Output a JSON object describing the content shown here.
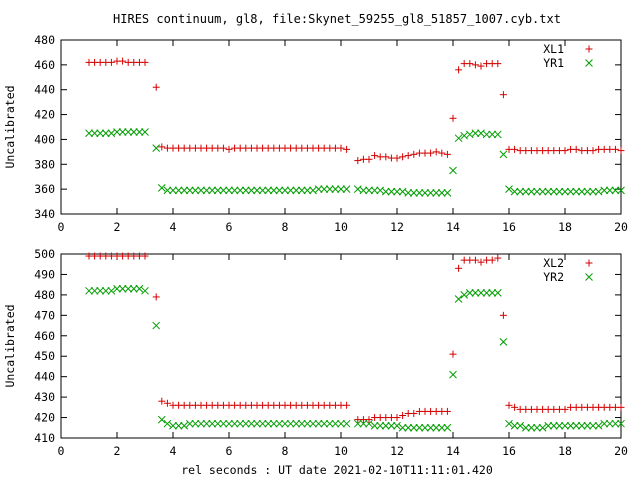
{
  "chart_data": [
    {
      "type": "scatter",
      "title": "HIRES continuum, gl8, file:Skynet_59255_gl8_51857_1007.cyb.txt",
      "ylabel": "Uncalibrated",
      "xlabel": "",
      "xlim": [
        0,
        20
      ],
      "ylim": [
        340,
        480
      ],
      "xticks": [
        "0",
        "2",
        "4",
        "6",
        "8",
        "10",
        "12",
        "14",
        "16",
        "18",
        "20"
      ],
      "yticks": [
        "340",
        "360",
        "380",
        "400",
        "420",
        "440",
        "460",
        "480"
      ],
      "grid": false,
      "legend_position": "top-right",
      "x": [
        1.0,
        1.2,
        1.4,
        1.6,
        1.8,
        2.0,
        2.2,
        2.4,
        2.6,
        2.8,
        3.0,
        3.4,
        3.6,
        3.8,
        4.0,
        4.2,
        4.4,
        4.6,
        4.8,
        5.0,
        5.2,
        5.4,
        5.6,
        5.8,
        6.0,
        6.2,
        6.4,
        6.6,
        6.8,
        7.0,
        7.2,
        7.4,
        7.6,
        7.8,
        8.0,
        8.2,
        8.4,
        8.6,
        8.8,
        9.0,
        9.2,
        9.4,
        9.6,
        9.8,
        10.0,
        10.2,
        10.6,
        10.8,
        11.0,
        11.2,
        11.4,
        11.6,
        11.8,
        12.0,
        12.2,
        12.4,
        12.6,
        12.8,
        13.0,
        13.2,
        13.4,
        13.6,
        13.8,
        14.0,
        14.2,
        14.4,
        14.6,
        14.8,
        15.0,
        15.2,
        15.4,
        15.6,
        15.8,
        16.0,
        16.2,
        16.4,
        16.6,
        16.8,
        17.0,
        17.2,
        17.4,
        17.6,
        17.8,
        18.0,
        18.2,
        18.4,
        18.6,
        18.8,
        19.0,
        19.2,
        19.4,
        19.6,
        19.8,
        20.0
      ],
      "series": [
        {
          "name": "XL1",
          "marker": "+",
          "color": "#d40000",
          "values": [
            462,
            462,
            462,
            462,
            462,
            463,
            463,
            462,
            462,
            462,
            462,
            442,
            394,
            393,
            393,
            393,
            393,
            393,
            393,
            393,
            393,
            393,
            393,
            393,
            392,
            393,
            393,
            393,
            393,
            393,
            393,
            393,
            393,
            393,
            393,
            393,
            393,
            393,
            393,
            393,
            393,
            393,
            393,
            393,
            393,
            392,
            383,
            384,
            384,
            387,
            386,
            386,
            385,
            385,
            386,
            387,
            388,
            389,
            389,
            389,
            390,
            389,
            388,
            417,
            456,
            461,
            461,
            460,
            459,
            461,
            461,
            461,
            436,
            392,
            392,
            391,
            391,
            391,
            391,
            391,
            391,
            391,
            391,
            391,
            392,
            392,
            391,
            391,
            391,
            392,
            392,
            392,
            392,
            391
          ]
        },
        {
          "name": "YR1",
          "marker": "x",
          "color": "#009e00",
          "values": [
            405,
            405,
            405,
            405,
            405,
            406,
            406,
            406,
            406,
            406,
            406,
            393,
            361,
            359,
            359,
            359,
            359,
            359,
            359,
            359,
            359,
            359,
            359,
            359,
            359,
            359,
            359,
            359,
            359,
            359,
            359,
            359,
            359,
            359,
            359,
            359,
            359,
            359,
            359,
            359,
            360,
            360,
            360,
            360,
            360,
            360,
            360,
            359,
            359,
            359,
            359,
            358,
            358,
            358,
            358,
            357,
            357,
            357,
            357,
            357,
            357,
            357,
            357,
            375,
            401,
            403,
            404,
            405,
            405,
            404,
            404,
            404,
            388,
            360,
            358,
            358,
            358,
            358,
            358,
            358,
            358,
            358,
            358,
            358,
            358,
            358,
            358,
            358,
            358,
            358,
            359,
            359,
            359,
            359
          ]
        }
      ]
    },
    {
      "type": "scatter",
      "title": "",
      "ylabel": "Uncalibrated",
      "xlabel": "rel seconds : UT date 2021-02-10T11:11:01.420",
      "xlim": [
        0,
        20
      ],
      "ylim": [
        410,
        500
      ],
      "xticks": [
        "0",
        "2",
        "4",
        "6",
        "8",
        "10",
        "12",
        "14",
        "16",
        "18",
        "20"
      ],
      "yticks": [
        "410",
        "420",
        "430",
        "440",
        "450",
        "460",
        "470",
        "480",
        "490",
        "500"
      ],
      "grid": false,
      "legend_position": "top-right",
      "x": [
        1.0,
        1.2,
        1.4,
        1.6,
        1.8,
        2.0,
        2.2,
        2.4,
        2.6,
        2.8,
        3.0,
        3.4,
        3.6,
        3.8,
        4.0,
        4.2,
        4.4,
        4.6,
        4.8,
        5.0,
        5.2,
        5.4,
        5.6,
        5.8,
        6.0,
        6.2,
        6.4,
        6.6,
        6.8,
        7.0,
        7.2,
        7.4,
        7.6,
        7.8,
        8.0,
        8.2,
        8.4,
        8.6,
        8.8,
        9.0,
        9.2,
        9.4,
        9.6,
        9.8,
        10.0,
        10.2,
        10.6,
        10.8,
        11.0,
        11.2,
        11.4,
        11.6,
        11.8,
        12.0,
        12.2,
        12.4,
        12.6,
        12.8,
        13.0,
        13.2,
        13.4,
        13.6,
        13.8,
        14.0,
        14.2,
        14.4,
        14.6,
        14.8,
        15.0,
        15.2,
        15.4,
        15.6,
        15.8,
        16.0,
        16.2,
        16.4,
        16.6,
        16.8,
        17.0,
        17.2,
        17.4,
        17.6,
        17.8,
        18.0,
        18.2,
        18.4,
        18.6,
        18.8,
        19.0,
        19.2,
        19.4,
        19.6,
        19.8,
        20.0
      ],
      "series": [
        {
          "name": "XL2",
          "marker": "+",
          "color": "#d40000",
          "values": [
            499,
            499,
            499,
            499,
            499,
            499,
            499,
            499,
            499,
            499,
            499,
            479,
            428,
            427,
            426,
            426,
            426,
            426,
            426,
            426,
            426,
            426,
            426,
            426,
            426,
            426,
            426,
            426,
            426,
            426,
            426,
            426,
            426,
            426,
            426,
            426,
            426,
            426,
            426,
            426,
            426,
            426,
            426,
            426,
            426,
            426,
            419,
            419,
            419,
            420,
            420,
            420,
            420,
            420,
            421,
            422,
            422,
            423,
            423,
            423,
            423,
            423,
            423,
            451,
            493,
            497,
            497,
            497,
            496,
            497,
            497,
            498,
            470,
            426,
            425,
            424,
            424,
            424,
            424,
            424,
            424,
            424,
            424,
            424,
            425,
            425,
            425,
            425,
            425,
            425,
            425,
            425,
            425,
            425
          ]
        },
        {
          "name": "YR2",
          "marker": "x",
          "color": "#009e00",
          "values": [
            482,
            482,
            482,
            482,
            482,
            483,
            483,
            483,
            483,
            483,
            482,
            465,
            419,
            417,
            416,
            416,
            416,
            417,
            417,
            417,
            417,
            417,
            417,
            417,
            417,
            417,
            417,
            417,
            417,
            417,
            417,
            417,
            417,
            417,
            417,
            417,
            417,
            417,
            417,
            417,
            417,
            417,
            417,
            417,
            417,
            417,
            417,
            417,
            417,
            416,
            416,
            416,
            416,
            416,
            415,
            415,
            415,
            415,
            415,
            415,
            415,
            415,
            415,
            441,
            478,
            480,
            481,
            481,
            481,
            481,
            481,
            481,
            457,
            417,
            416,
            416,
            415,
            415,
            415,
            415,
            416,
            416,
            416,
            416,
            416,
            416,
            416,
            416,
            416,
            416,
            417,
            417,
            417,
            417
          ]
        }
      ]
    }
  ]
}
